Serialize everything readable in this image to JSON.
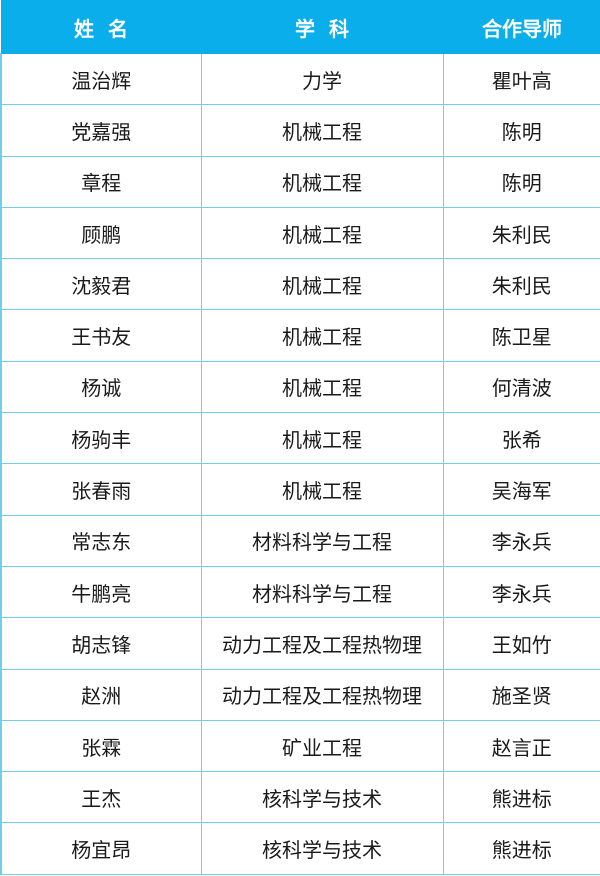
{
  "header": {
    "name": "姓  名",
    "subject": "学  科",
    "advisor": "合作导师"
  },
  "colors": {
    "header_bg": "#0aaeea",
    "grid": "#6fd0ec"
  },
  "rows": [
    {
      "name": "温治辉",
      "subject": "力学",
      "advisor": "瞿叶高"
    },
    {
      "name": "党嘉强",
      "subject": "机械工程",
      "advisor": "陈明"
    },
    {
      "name": "章程",
      "subject": "机械工程",
      "advisor": "陈明"
    },
    {
      "name": "顾鹏",
      "subject": "机械工程",
      "advisor": "朱利民"
    },
    {
      "name": "沈毅君",
      "subject": "机械工程",
      "advisor": "朱利民"
    },
    {
      "name": "王书友",
      "subject": "机械工程",
      "advisor": "陈卫星"
    },
    {
      "name": "杨诚",
      "subject": "机械工程",
      "advisor": "何清波"
    },
    {
      "name": "杨驹丰",
      "subject": "机械工程",
      "advisor": "张希"
    },
    {
      "name": "张春雨",
      "subject": "机械工程",
      "advisor": "吴海军"
    },
    {
      "name": "常志东",
      "subject": "材料科学与工程",
      "advisor": "李永兵"
    },
    {
      "name": "牛鹏亮",
      "subject": "材料科学与工程",
      "advisor": "李永兵"
    },
    {
      "name": "胡志锋",
      "subject": "动力工程及工程热物理",
      "advisor": "王如竹"
    },
    {
      "name": "赵洲",
      "subject": "动力工程及工程热物理",
      "advisor": "施圣贤"
    },
    {
      "name": "张霖",
      "subject": "矿业工程",
      "advisor": "赵言正"
    },
    {
      "name": "王杰",
      "subject": "核科学与技术",
      "advisor": "熊进标"
    },
    {
      "name": "杨宜昂",
      "subject": "核科学与技术",
      "advisor": "熊进标"
    }
  ]
}
